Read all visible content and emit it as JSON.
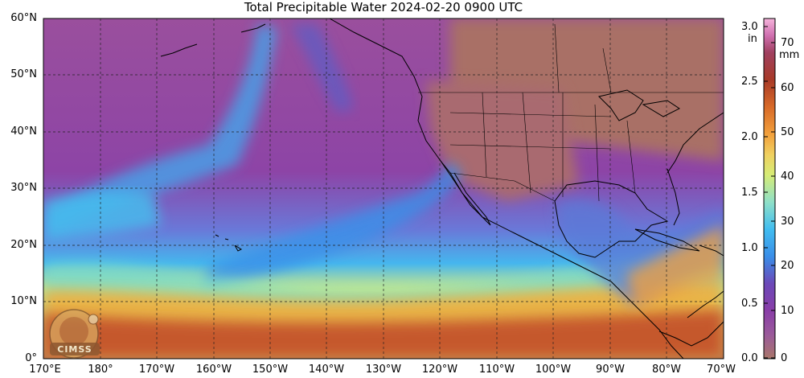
{
  "title": "Total Precipitable Water  2024-02-20 0900 UTC",
  "lat_ticks": [
    "60°N",
    "50°N",
    "40°N",
    "30°N",
    "20°N",
    "10°N",
    "0°"
  ],
  "lon_ticks": [
    "170°E",
    "180°",
    "170°W",
    "160°W",
    "150°W",
    "140°W",
    "130°W",
    "120°W",
    "110°W",
    "100°W",
    "90°W",
    "80°W",
    "70°W"
  ],
  "colorbar": {
    "in_unit": "in",
    "mm_unit": "mm",
    "in_ticks": [
      "3.0",
      "2.5",
      "2.0",
      "1.5",
      "1.0",
      "0.5",
      "0.0"
    ],
    "mm_ticks": [
      "70",
      "60",
      "50",
      "40",
      "30",
      "20",
      "10",
      "0"
    ],
    "colors": [
      "#a9766a",
      "#9a5a9a",
      "#8a3ea8",
      "#7e3aae",
      "#5a5ec8",
      "#3a8ee8",
      "#41bdf0",
      "#8fe0c8",
      "#c8ec7a",
      "#f0e070",
      "#f2b040",
      "#e07828",
      "#b84a20",
      "#a03a3a",
      "#c85a96",
      "#f4a8d8"
    ]
  },
  "logo": {
    "text": "CIMSS"
  }
}
